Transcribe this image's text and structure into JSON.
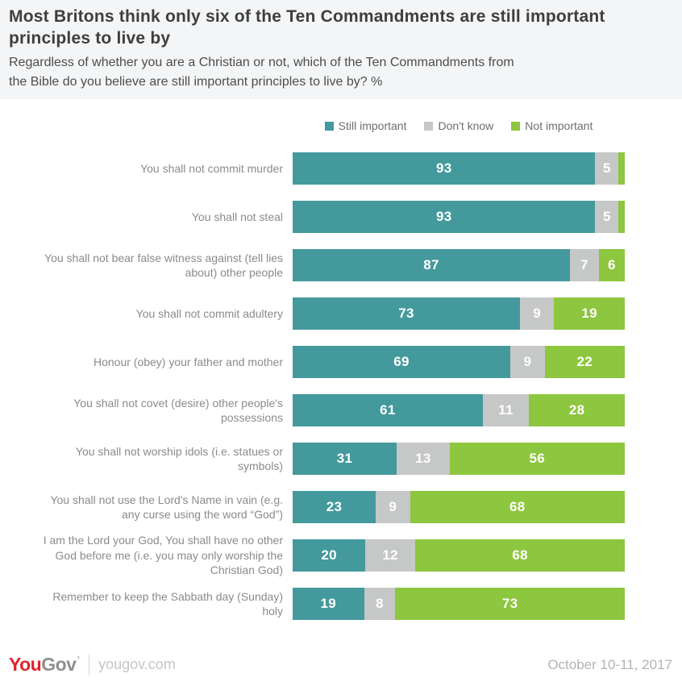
{
  "header": {
    "title": "Most Britons think only six of the Ten Commandments are still important principles to live by",
    "subtitle": "Regardless of whether you are a Christian or not, which of the Ten Commandments from the Bible do you believe are still important principles to live by? %"
  },
  "legend": {
    "items": [
      {
        "label": "Still important",
        "color": "#44999d"
      },
      {
        "label": "Don't know",
        "color": "#c6c7c7"
      },
      {
        "label": "Not important",
        "color": "#8dc63f"
      }
    ]
  },
  "chart_data": {
    "type": "bar",
    "orientation": "horizontal-stacked",
    "title": "Most Britons think only six of the Ten Commandments are still important principles to live by",
    "xlabel": "",
    "ylabel": "",
    "xlim": [
      0,
      100
    ],
    "grid": false,
    "legend_position": "top",
    "value_label_min_show": 5,
    "categories": [
      "You shall not commit murder",
      "You shall not steal",
      "You shall not bear false witness against (tell lies about) other people",
      "You shall not commit adultery",
      "Honour (obey) your father and mother",
      "You shall not covet (desire) other people's possessions",
      "You shall not worship idols (i.e. statues or symbols)",
      "You shall not use the Lord's Name in vain (e.g. any curse using the word “God”)",
      "I am the Lord your God, You shall have no other God before me (i.e. you may only worship the Christian God)",
      "Remember to keep the Sabbath day (Sunday) holy"
    ],
    "series": [
      {
        "name": "Still important",
        "color": "#44999d",
        "values": [
          93,
          93,
          87,
          73,
          69,
          61,
          31,
          23,
          20,
          19
        ]
      },
      {
        "name": "Don't know",
        "color": "#c6c7c7",
        "values": [
          5,
          5,
          7,
          9,
          9,
          11,
          13,
          9,
          12,
          8
        ]
      },
      {
        "name": "Not important",
        "color": "#8dc63f",
        "values": [
          2,
          2,
          6,
          19,
          22,
          28,
          56,
          68,
          68,
          73
        ]
      }
    ]
  },
  "footer": {
    "logo_you": "You",
    "logo_gov": "Gov",
    "logo_mark": "’",
    "site": "yougov.com",
    "date": "October 10-11, 2017"
  }
}
